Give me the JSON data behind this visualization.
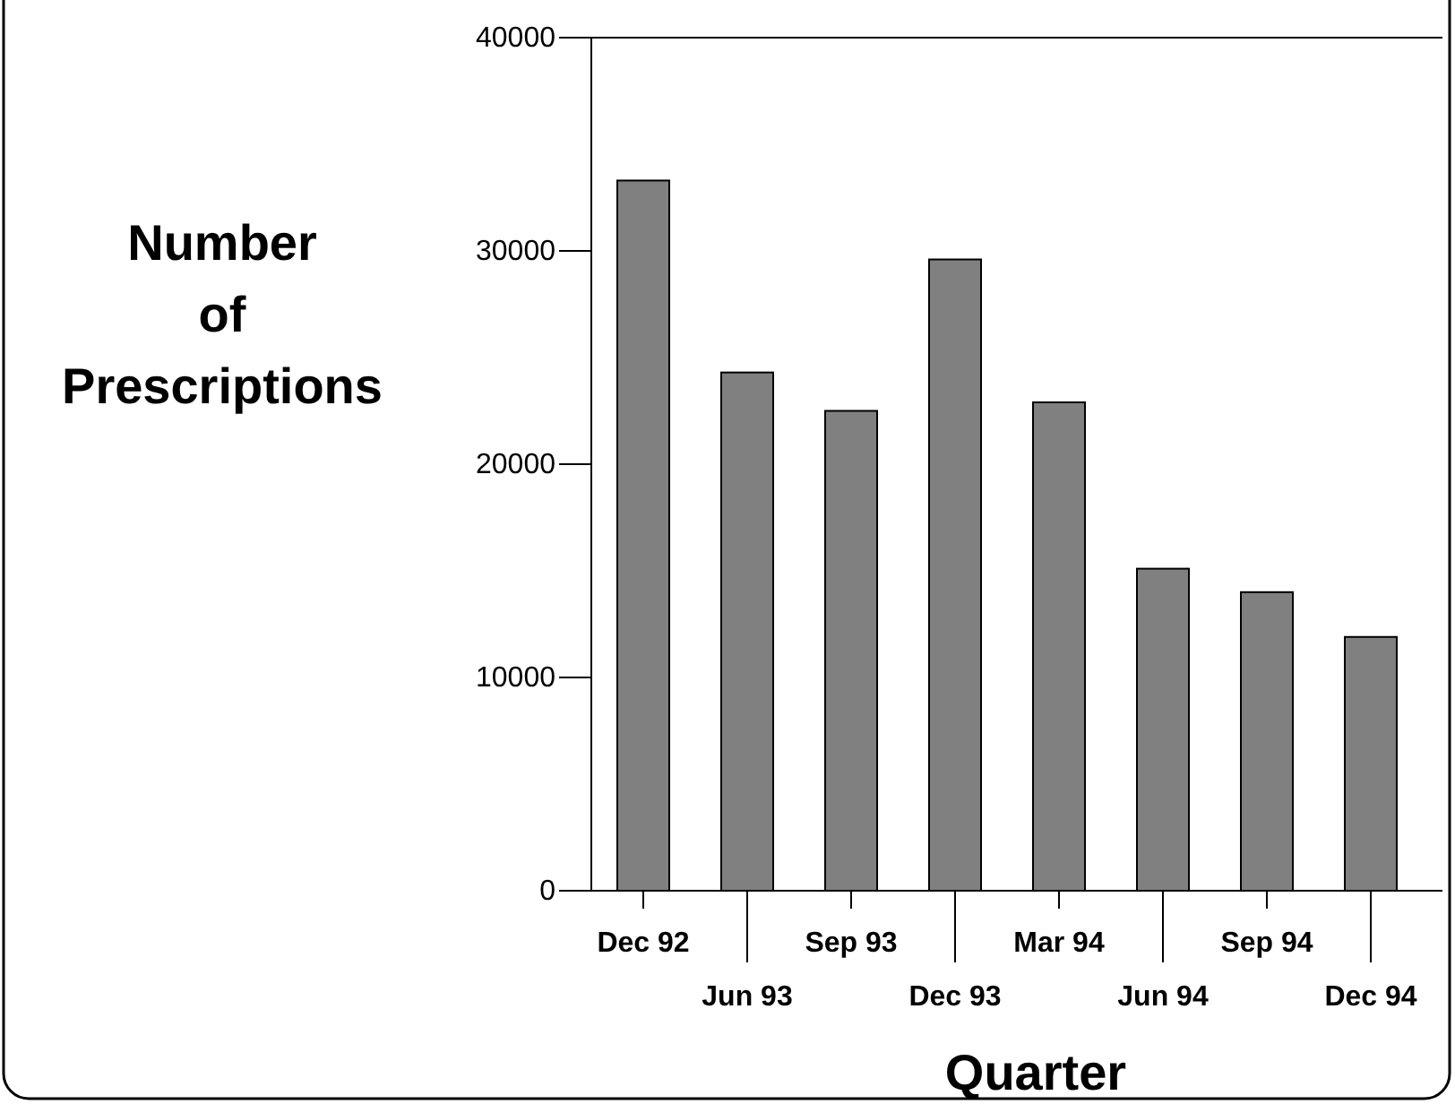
{
  "chart_data": {
    "type": "bar",
    "xlabel": "Quarter",
    "ylabel": "Number of Prescriptions",
    "categories": [
      "Dec 92",
      "Jun 93",
      "Sep 93",
      "Dec 93",
      "Mar 94",
      "Jun 94",
      "Sep 94",
      "Dec 94"
    ],
    "values": [
      33300,
      24300,
      22500,
      29600,
      22900,
      15100,
      14000,
      11900
    ],
    "color": "#808080",
    "ylim": [
      0,
      40000
    ],
    "yticks": [
      0,
      10000,
      20000,
      30000,
      40000
    ],
    "grid": false
  }
}
